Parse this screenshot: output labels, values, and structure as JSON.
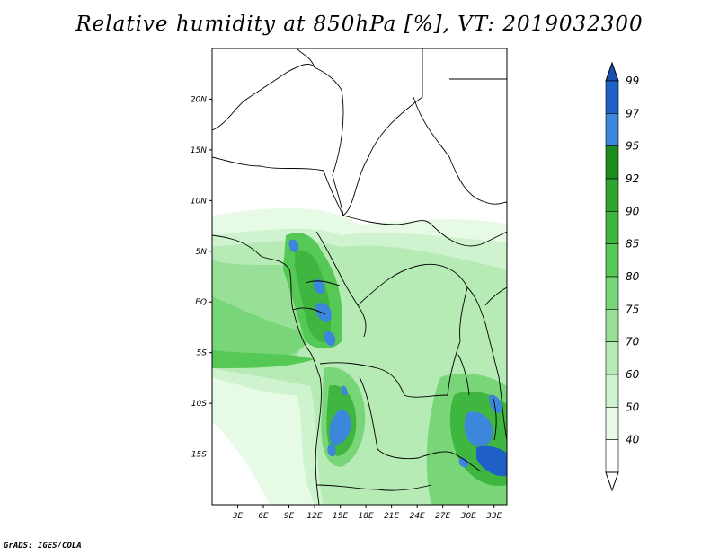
{
  "title": "Relative humidity at 850hPa [%], VT: 2019032300",
  "credit": "GrADS: IGES/COLA",
  "map": {
    "lon_range": [
      0,
      34.5
    ],
    "lat_range": [
      -20,
      25
    ],
    "y_ticks": [
      {
        "lat": 20,
        "label": "20N"
      },
      {
        "lat": 15,
        "label": "15N"
      },
      {
        "lat": 10,
        "label": "10N"
      },
      {
        "lat": 5,
        "label": "5N"
      },
      {
        "lat": 0,
        "label": "EQ"
      },
      {
        "lat": -5,
        "label": "5S"
      },
      {
        "lat": -10,
        "label": "10S"
      },
      {
        "lat": -15,
        "label": "15S"
      }
    ],
    "x_ticks": [
      {
        "lon": 3,
        "label": "3E"
      },
      {
        "lon": 6,
        "label": "6E"
      },
      {
        "lon": 9,
        "label": "9E"
      },
      {
        "lon": 12,
        "label": "12E"
      },
      {
        "lon": 15,
        "label": "15E"
      },
      {
        "lon": 18,
        "label": "18E"
      },
      {
        "lon": 21,
        "label": "21E"
      },
      {
        "lon": 24,
        "label": "24E"
      },
      {
        "lon": 27,
        "label": "27E"
      },
      {
        "lon": 30,
        "label": "30E"
      },
      {
        "lon": 33,
        "label": "33E"
      }
    ]
  },
  "colorbar": {
    "bins": [
      {
        "label": "99",
        "color": "#1f5fc8"
      },
      {
        "label": "97",
        "color": "#3c86dc"
      },
      {
        "label": "95",
        "color": "#1b8c1b"
      },
      {
        "label": "92",
        "color": "#2ea32e"
      },
      {
        "label": "90",
        "color": "#3fb63f"
      },
      {
        "label": "85",
        "color": "#55c855"
      },
      {
        "label": "80",
        "color": "#78d678"
      },
      {
        "label": "75",
        "color": "#98e098"
      },
      {
        "label": "70",
        "color": "#b6ebb6"
      },
      {
        "label": "60",
        "color": "#cff3cf"
      },
      {
        "label": "50",
        "color": "#e6fae6"
      },
      {
        "label": "40",
        "color": "#ffffff"
      }
    ],
    "top_color": "#1a4fb0"
  }
}
